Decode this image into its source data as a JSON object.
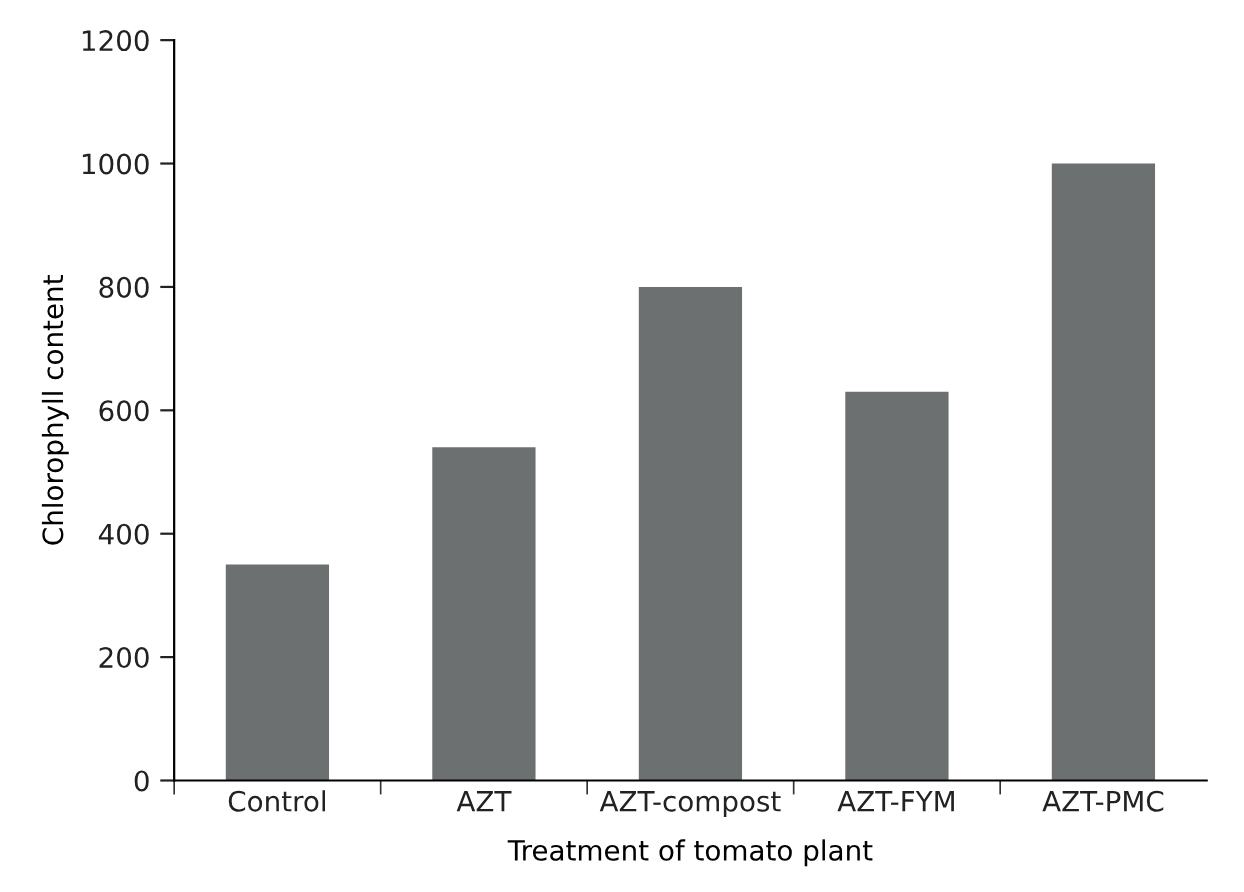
{
  "chart_data": {
    "type": "bar",
    "xlabel": "Treatment of tomato plant",
    "ylabel": "Chlorophyll content",
    "categories": [
      "Control",
      "AZT",
      "AZT-compost",
      "AZT-FYM",
      "AZT-PMC"
    ],
    "values": [
      350,
      540,
      800,
      630,
      1000
    ],
    "color": "#6d7070",
    "ylim": [
      0,
      1200
    ],
    "yticks": [
      0,
      200,
      400,
      600,
      800,
      1000,
      1200
    ],
    "grid": false,
    "legend": false
  }
}
